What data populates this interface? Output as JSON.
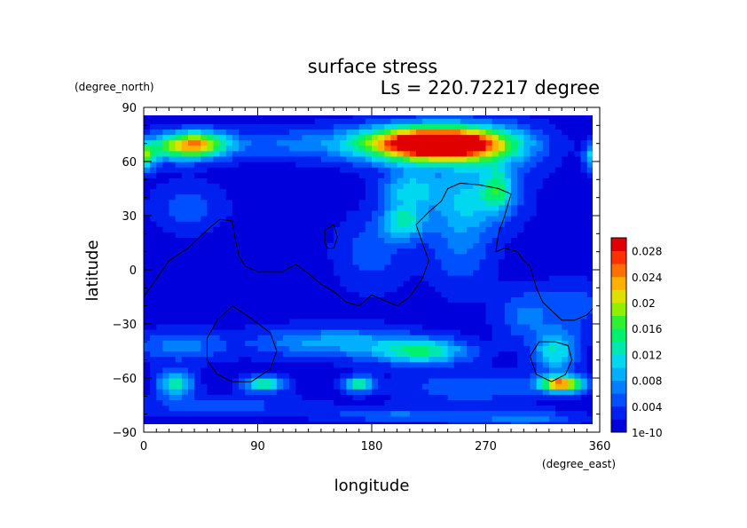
{
  "chart_data": {
    "type": "heatmap",
    "title": "surface stress",
    "subtitle": "Ls = 220.72217 degree",
    "xlabel": "longitude",
    "ylabel": "latitude",
    "x_unit": "(degree_east)",
    "y_unit": "(degree_north)",
    "xlim": [
      0,
      360
    ],
    "ylim": [
      -90,
      90
    ],
    "x_ticks": [
      0,
      90,
      180,
      270,
      360
    ],
    "x_tick_labels": [
      "0",
      "90",
      "180",
      "270",
      "360"
    ],
    "y_ticks": [
      90,
      60,
      30,
      0,
      -30,
      -60,
      -90
    ],
    "y_tick_labels": [
      "90",
      "60",
      "30",
      "0",
      "−30",
      "−60",
      "−90"
    ],
    "data_extent": {
      "lon": [
        0,
        355
      ],
      "lat": [
        -87,
        87
      ]
    },
    "colorbar": {
      "min": 0,
      "max": 0.03,
      "ticks": [
        0,
        0.004,
        0.008,
        0.012,
        0.016,
        0.02,
        0.024,
        0.028
      ],
      "tick_labels": [
        "1e-10",
        "0.004",
        "0.008",
        "0.012",
        "0.016",
        "0.02",
        "0.024",
        "0.028"
      ],
      "colors": [
        "#0000dc",
        "#0020f0",
        "#0050ff",
        "#0080ff",
        "#00b0ff",
        "#00d8f0",
        "#00e8b0",
        "#00f070",
        "#30f030",
        "#90f000",
        "#e0e000",
        "#ffb000",
        "#ff7000",
        "#ff3000",
        "#e00000"
      ]
    },
    "background_value": 0.001,
    "features": [
      {
        "lon": 40,
        "lat": 70,
        "slon": 18,
        "slat": 5,
        "value": 0.018
      },
      {
        "lon": 15,
        "lat": 67,
        "slon": 28,
        "slat": 5,
        "value": 0.008
      },
      {
        "lon": 120,
        "lat": 70,
        "slon": 50,
        "slat": 6,
        "value": 0.005
      },
      {
        "lon": 0,
        "lat": 62,
        "slon": 6,
        "slat": 5,
        "value": 0.012
      },
      {
        "lon": 358,
        "lat": 63,
        "slon": 6,
        "slat": 5,
        "value": 0.014
      },
      {
        "lon": 235,
        "lat": 70,
        "slon": 35,
        "slat": 6,
        "value": 0.027
      },
      {
        "lon": 210,
        "lat": 70,
        "slon": 35,
        "slat": 8,
        "value": 0.012
      },
      {
        "lon": 270,
        "lat": 68,
        "slon": 30,
        "slat": 10,
        "value": 0.008
      },
      {
        "lon": 210,
        "lat": 45,
        "slon": 15,
        "slat": 7,
        "value": 0.009
      },
      {
        "lon": 205,
        "lat": 27,
        "slon": 12,
        "slat": 7,
        "value": 0.011
      },
      {
        "lon": 260,
        "lat": 40,
        "slon": 25,
        "slat": 12,
        "value": 0.008
      },
      {
        "lon": 280,
        "lat": 45,
        "slon": 8,
        "slat": 8,
        "value": 0.009
      },
      {
        "lon": 250,
        "lat": 15,
        "slon": 18,
        "slat": 18,
        "value": 0.005
      },
      {
        "lon": 180,
        "lat": 10,
        "slon": 20,
        "slat": 15,
        "value": 0.004
      },
      {
        "lon": 35,
        "lat": 35,
        "slon": 20,
        "slat": 10,
        "value": 0.004
      },
      {
        "lon": 300,
        "lat": -25,
        "slon": 15,
        "slat": 10,
        "value": 0.005
      },
      {
        "lon": 340,
        "lat": -20,
        "slon": 20,
        "slat": 10,
        "value": 0.004
      },
      {
        "lon": 220,
        "lat": -45,
        "slon": 25,
        "slat": 5,
        "value": 0.013
      },
      {
        "lon": 170,
        "lat": -40,
        "slon": 30,
        "slat": 6,
        "value": 0.006
      },
      {
        "lon": 120,
        "lat": -40,
        "slon": 30,
        "slat": 6,
        "value": 0.005
      },
      {
        "lon": 30,
        "lat": -42,
        "slon": 25,
        "slat": 6,
        "value": 0.006
      },
      {
        "lon": 325,
        "lat": -45,
        "slon": 12,
        "slat": 8,
        "value": 0.011
      },
      {
        "lon": 25,
        "lat": -63,
        "slon": 10,
        "slat": 5,
        "value": 0.012
      },
      {
        "lon": 95,
        "lat": -63,
        "slon": 12,
        "slat": 3,
        "value": 0.013
      },
      {
        "lon": 170,
        "lat": -63,
        "slon": 8,
        "slat": 3,
        "value": 0.013
      },
      {
        "lon": 330,
        "lat": -63,
        "slon": 12,
        "slat": 3,
        "value": 0.024
      },
      {
        "lon": 260,
        "lat": -65,
        "slon": 40,
        "slat": 6,
        "value": 0.005
      },
      {
        "lon": 60,
        "lat": -75,
        "slon": 50,
        "slat": 4,
        "value": 0.004
      },
      {
        "lon": 200,
        "lat": -80,
        "slon": 40,
        "slat": 3,
        "value": 0.005
      },
      {
        "lon": 300,
        "lat": -82,
        "slon": 30,
        "slat": 3,
        "value": 0.006
      }
    ],
    "contours": [
      [
        [
          0,
          -15
        ],
        [
          10,
          -5
        ],
        [
          20,
          5
        ],
        [
          35,
          12
        ],
        [
          50,
          22
        ],
        [
          60,
          28
        ],
        [
          70,
          27
        ],
        [
          72,
          18
        ],
        [
          75,
          8
        ],
        [
          80,
          2
        ],
        [
          90,
          -1
        ],
        [
          110,
          -1
        ],
        [
          120,
          3
        ],
        [
          130,
          -2
        ],
        [
          140,
          -8
        ],
        [
          150,
          -12
        ],
        [
          160,
          -18
        ],
        [
          170,
          -20
        ],
        [
          180,
          -14
        ],
        [
          200,
          -20
        ],
        [
          210,
          -15
        ],
        [
          220,
          -5
        ],
        [
          225,
          5
        ],
        [
          220,
          15
        ],
        [
          215,
          25
        ],
        [
          225,
          32
        ],
        [
          235,
          38
        ],
        [
          240,
          45
        ],
        [
          250,
          48
        ],
        [
          265,
          47
        ],
        [
          280,
          45
        ],
        [
          290,
          42
        ],
        [
          285,
          30
        ],
        [
          280,
          20
        ],
        [
          278,
          10
        ],
        [
          285,
          12
        ],
        [
          295,
          10
        ],
        [
          300,
          5
        ],
        [
          305,
          2
        ],
        [
          310,
          -10
        ],
        [
          315,
          -18
        ],
        [
          330,
          -28
        ],
        [
          340,
          -28
        ],
        [
          350,
          -25
        ],
        [
          355,
          -21
        ]
      ],
      [
        [
          70,
          -20
        ],
        [
          85,
          -27
        ],
        [
          100,
          -35
        ],
        [
          105,
          -45
        ],
        [
          100,
          -55
        ],
        [
          85,
          -62
        ],
        [
          70,
          -62
        ],
        [
          58,
          -58
        ],
        [
          50,
          -50
        ],
        [
          50,
          -38
        ],
        [
          58,
          -28
        ],
        [
          70,
          -20
        ]
      ],
      [
        [
          143,
          22
        ],
        [
          150,
          25
        ],
        [
          153,
          18
        ],
        [
          150,
          12
        ],
        [
          145,
          12
        ],
        [
          143,
          15
        ],
        [
          143,
          22
        ]
      ],
      [
        [
          325,
          -40
        ],
        [
          335,
          -42
        ],
        [
          338,
          -50
        ],
        [
          333,
          -58
        ],
        [
          322,
          -62
        ],
        [
          310,
          -58
        ],
        [
          305,
          -48
        ],
        [
          312,
          -40
        ],
        [
          325,
          -40
        ]
      ]
    ]
  }
}
